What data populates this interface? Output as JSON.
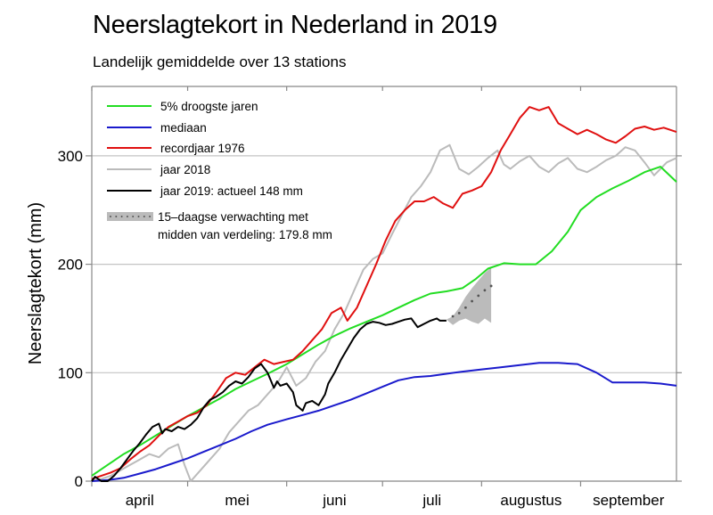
{
  "chart_data": {
    "type": "line",
    "title": "Neerslagtekort in Nederland in 2019",
    "subtitle": "Landelijk gemiddelde over 13 stations",
    "xlabel": "",
    "ylabel": "Neerslagtekort (mm)",
    "x_unit": "days since 1 April",
    "xlim": [
      0,
      183
    ],
    "ylim": [
      0,
      365
    ],
    "yticks": [
      0,
      100,
      200,
      300
    ],
    "ytick_labels": [
      "0",
      "100",
      "200",
      "300"
    ],
    "grid": "horizontal",
    "months": [
      {
        "label": "april",
        "start": 0,
        "end": 30
      },
      {
        "label": "mei",
        "start": 30,
        "end": 61
      },
      {
        "label": "juni",
        "start": 61,
        "end": 91
      },
      {
        "label": "juli",
        "start": 91,
        "end": 122
      },
      {
        "label": "augustus",
        "start": 122,
        "end": 153
      },
      {
        "label": "september",
        "start": 153,
        "end": 183
      }
    ],
    "legend_position": "top-left",
    "series": [
      {
        "name": "5% droogste jaren",
        "color": "#22dd22",
        "x": [
          0,
          5,
          10,
          15,
          20,
          25,
          30,
          35,
          40,
          45,
          50,
          55,
          61,
          66,
          71,
          76,
          81,
          86,
          91,
          96,
          101,
          106,
          111,
          116,
          120,
          124,
          129,
          134,
          139,
          144,
          149,
          153,
          158,
          163,
          168,
          173,
          178,
          183
        ],
        "values": [
          5,
          15,
          25,
          33,
          42,
          51,
          60,
          68,
          76,
          85,
          92,
          99,
          108,
          117,
          126,
          134,
          141,
          147,
          153,
          160,
          167,
          173,
          175,
          178,
          186,
          196,
          201,
          200,
          200,
          212,
          230,
          250,
          262,
          270,
          277,
          285,
          290,
          276
        ]
      },
      {
        "name": "mediaan",
        "color": "#1a1acc",
        "x": [
          0,
          5,
          10,
          15,
          20,
          25,
          30,
          35,
          40,
          45,
          50,
          55,
          61,
          66,
          71,
          76,
          81,
          86,
          91,
          96,
          101,
          106,
          111,
          116,
          122,
          128,
          134,
          140,
          146,
          152,
          158,
          163,
          168,
          173,
          178,
          183
        ],
        "values": [
          0,
          1,
          3,
          7,
          11,
          16,
          21,
          27,
          33,
          39,
          46,
          52,
          57,
          61,
          65,
          70,
          75,
          81,
          87,
          93,
          96,
          97,
          99,
          101,
          103,
          105,
          107,
          109,
          109,
          108,
          100,
          91,
          91,
          91,
          90,
          88
        ]
      },
      {
        "name": "recordjaar 1976",
        "color": "#e01010",
        "x": [
          0,
          3,
          6,
          9,
          12,
          15,
          18,
          21,
          24,
          27,
          30,
          33,
          36,
          39,
          42,
          45,
          48,
          51,
          54,
          57,
          60,
          63,
          66,
          69,
          72,
          75,
          78,
          80,
          83,
          86,
          89,
          92,
          95,
          98,
          101,
          104,
          107,
          110,
          113,
          116,
          119,
          122,
          125,
          128,
          131,
          134,
          137,
          140,
          143,
          146,
          149,
          152,
          155,
          158,
          161,
          164,
          167,
          170,
          173,
          176,
          179,
          183
        ],
        "values": [
          2,
          5,
          8,
          12,
          20,
          27,
          33,
          42,
          50,
          55,
          60,
          63,
          70,
          82,
          95,
          100,
          98,
          105,
          112,
          108,
          110,
          112,
          120,
          130,
          140,
          155,
          160,
          148,
          160,
          180,
          200,
          222,
          240,
          250,
          258,
          258,
          262,
          256,
          252,
          265,
          268,
          272,
          285,
          305,
          320,
          335,
          345,
          342,
          345,
          330,
          325,
          320,
          324,
          320,
          315,
          312,
          318,
          325,
          327,
          324,
          326,
          322
        ]
      },
      {
        "name": "jaar 2018",
        "color": "#bbbbbb",
        "x": [
          0,
          3,
          6,
          9,
          12,
          15,
          18,
          21,
          24,
          27,
          29,
          31,
          34,
          37,
          40,
          43,
          46,
          49,
          52,
          55,
          58,
          61,
          64,
          67,
          70,
          73,
          76,
          79,
          82,
          85,
          88,
          91,
          94,
          97,
          100,
          103,
          106,
          109,
          112,
          115,
          118,
          121,
          124,
          127,
          129,
          131,
          134,
          137,
          140,
          143,
          146,
          149,
          152,
          155,
          158,
          161,
          164,
          167,
          170,
          173,
          176,
          178,
          180,
          183
        ],
        "values": [
          0,
          2,
          5,
          10,
          15,
          20,
          25,
          22,
          30,
          34,
          15,
          0,
          10,
          20,
          30,
          45,
          55,
          65,
          70,
          80,
          90,
          105,
          88,
          95,
          110,
          120,
          140,
          155,
          175,
          195,
          205,
          210,
          228,
          245,
          262,
          272,
          285,
          305,
          310,
          288,
          283,
          290,
          298,
          305,
          292,
          288,
          295,
          300,
          290,
          285,
          293,
          298,
          288,
          285,
          290,
          296,
          300,
          308,
          305,
          294,
          282,
          288,
          294,
          298
        ]
      },
      {
        "name": "jaar 2019: actueel 148 mm",
        "color": "#000000",
        "x": [
          0,
          1,
          2,
          3,
          5,
          7,
          9,
          11,
          13,
          15,
          17,
          19,
          21,
          22,
          23,
          25,
          27,
          29,
          31,
          33,
          35,
          37,
          39,
          41,
          43,
          45,
          47,
          49,
          51,
          53,
          55,
          57,
          58,
          59,
          61,
          63,
          64,
          66,
          67,
          69,
          71,
          73,
          74,
          76,
          78,
          80,
          82,
          84,
          86,
          88,
          90,
          92,
          94,
          96,
          98,
          100,
          102,
          104,
          106,
          108,
          109,
          111
        ],
        "values": [
          0,
          4,
          2,
          0,
          0,
          5,
          12,
          20,
          28,
          35,
          43,
          50,
          53,
          44,
          48,
          46,
          50,
          48,
          52,
          58,
          68,
          75,
          78,
          82,
          88,
          92,
          90,
          96,
          104,
          108,
          100,
          86,
          92,
          88,
          90,
          82,
          70,
          65,
          72,
          74,
          70,
          80,
          90,
          100,
          112,
          122,
          132,
          140,
          145,
          147,
          146,
          144,
          145,
          147,
          149,
          150,
          142,
          145,
          148,
          150,
          148,
          148
        ]
      }
    ],
    "forecast": {
      "name": "15-daagse verwachting met midden van verdeling: 179.8 mm",
      "fill_color": "#bbbbbb",
      "dot_color": "#555555",
      "x": [
        111,
        113,
        115,
        117,
        119,
        121,
        123,
        125
      ],
      "median": [
        149,
        152,
        155,
        160,
        166,
        171,
        176,
        180
      ],
      "upper": [
        149,
        152,
        160,
        170,
        178,
        185,
        192,
        197
      ],
      "lower": [
        149,
        144,
        148,
        150,
        147,
        145,
        150,
        146
      ]
    }
  },
  "legend": [
    {
      "label": "5% droogste jaren",
      "kind": "line",
      "color": "#22dd22"
    },
    {
      "label": "mediaan",
      "kind": "line",
      "color": "#1a1acc"
    },
    {
      "label": "recordjaar 1976",
      "kind": "line",
      "color": "#e01010"
    },
    {
      "label": "jaar 2018",
      "kind": "line",
      "color": "#bbbbbb"
    },
    {
      "label": "jaar 2019: actueel 148 mm",
      "kind": "line",
      "color": "#000000"
    },
    {
      "label": "15–daagse verwachting met",
      "label2": "midden van verdeling: 179.8 mm",
      "kind": "band",
      "color": "#bbbbbb"
    }
  ]
}
